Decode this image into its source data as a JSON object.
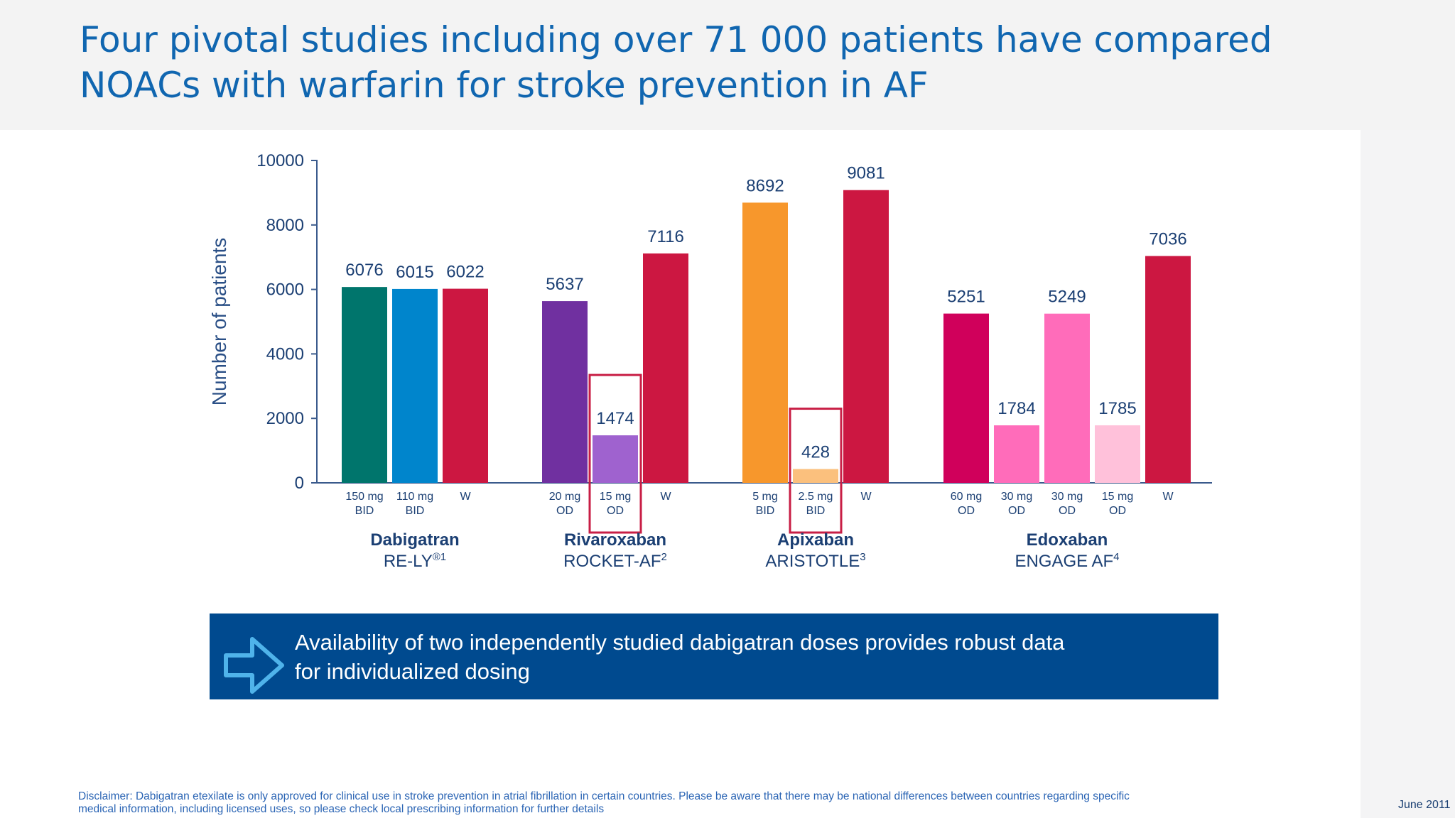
{
  "slide": {
    "title_line1": "Four pivotal studies including over 71 000 patients have compared",
    "title_line2": "NOACs with warfarin for stroke prevention in AF",
    "callout_line1": "Availability of two independently studied dabigatran doses provides robust data",
    "callout_line2": "for individualized dosing",
    "disclaimer_line1": "Disclaimer: Dabigatran etexilate is only approved for clinical use in stroke prevention in atrial fibrillation in certain countries. Please be aware that there may be national differences between countries regarding specific",
    "disclaimer_line2": "medical information, including licensed uses, so please check local prescribing information for further details",
    "date": "June 2011",
    "title_color": "#1066b0",
    "callout_color": "#004a8f"
  },
  "chart_data": {
    "type": "bar",
    "title": "",
    "xlabel": "",
    "ylabel": "Number of patients",
    "ylim": [
      0,
      10000
    ],
    "yticks": [
      0,
      2000,
      4000,
      6000,
      8000,
      10000
    ],
    "grid": false,
    "legend": "none",
    "groups": [
      {
        "drug": "Dabigatran",
        "trial": "RE-LY",
        "trial_sup": "®1",
        "bars": [
          {
            "dose_line1": "150 mg",
            "dose_line2": "BID",
            "value": 6076,
            "color": "#00756c"
          },
          {
            "dose_line1": "110 mg",
            "dose_line2": "BID",
            "value": 6015,
            "color": "#0085cc"
          },
          {
            "dose_line1": "W",
            "dose_line2": "",
            "value": 6022,
            "color": "#cc1741"
          }
        ]
      },
      {
        "drug": "Rivaroxaban",
        "trial": "ROCKET-AF",
        "trial_sup": "2",
        "bars": [
          {
            "dose_line1": "20 mg",
            "dose_line2": "OD",
            "value": 5637,
            "color": "#7030a0"
          },
          {
            "dose_line1": "15 mg",
            "dose_line2": "OD",
            "value": 1474,
            "color": "#9f62cf",
            "highlighted": true
          },
          {
            "dose_line1": "W",
            "dose_line2": "",
            "value": 7116,
            "color": "#cc1741"
          }
        ]
      },
      {
        "drug": "Apixaban",
        "trial": "ARISTOTLE",
        "trial_sup": "3",
        "bars": [
          {
            "dose_line1": "5 mg",
            "dose_line2": "BID",
            "value": 8692,
            "color": "#f7972c"
          },
          {
            "dose_line1": "2.5 mg",
            "dose_line2": "BID",
            "value": 428,
            "color": "#fbc07d",
            "highlighted": true
          },
          {
            "dose_line1": "W",
            "dose_line2": "",
            "value": 9081,
            "color": "#cc1741"
          }
        ]
      },
      {
        "drug": "Edoxaban",
        "trial": "ENGAGE AF",
        "trial_sup": "4",
        "bars": [
          {
            "dose_line1": "60 mg",
            "dose_line2": "OD",
            "value": 5251,
            "color": "#d0005b"
          },
          {
            "dose_line1": "30 mg",
            "dose_line2": "OD",
            "value": 1784,
            "color": "#ff6cba"
          },
          {
            "dose_line1": "30 mg",
            "dose_line2": "OD",
            "value": 5249,
            "color": "#ff6cba"
          },
          {
            "dose_line1": "15 mg",
            "dose_line2": "OD",
            "value": 1785,
            "color": "#ffc1da"
          },
          {
            "dose_line1": "W",
            "dose_line2": "",
            "value": 7036,
            "color": "#cc1741"
          }
        ]
      }
    ],
    "highlight_color": "#c81e45",
    "axis_color": "#3a5a8c",
    "label_color": "#1b3f73"
  }
}
